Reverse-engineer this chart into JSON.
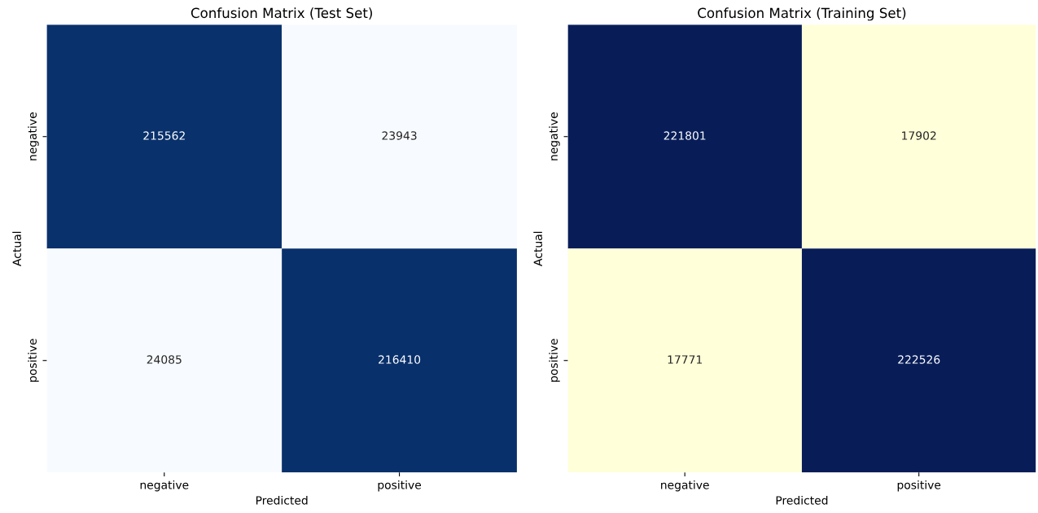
{
  "chart_data": [
    {
      "type": "heatmap",
      "title": "Confusion Matrix (Test Set)",
      "xlabel": "Predicted",
      "ylabel": "Actual",
      "categories": [
        "negative",
        "positive"
      ],
      "y_categories": [
        "negative",
        "positive"
      ],
      "cells": [
        [
          215562,
          23943
        ],
        [
          24085,
          216410
        ]
      ],
      "data_labels": true,
      "colors": [
        "#f7fbff",
        "#08306b"
      ],
      "grid": false
    },
    {
      "type": "heatmap",
      "title": "Confusion Matrix (Training Set)",
      "xlabel": "Predicted",
      "ylabel": "Actual",
      "categories": [
        "negative",
        "positive"
      ],
      "y_categories": [
        "negative",
        "positive"
      ],
      "cells": [
        [
          221801,
          17902
        ],
        [
          17771,
          222526
        ]
      ],
      "data_labels": true,
      "colors": [
        "#ffffd9",
        "#081d58"
      ],
      "grid": false
    }
  ]
}
